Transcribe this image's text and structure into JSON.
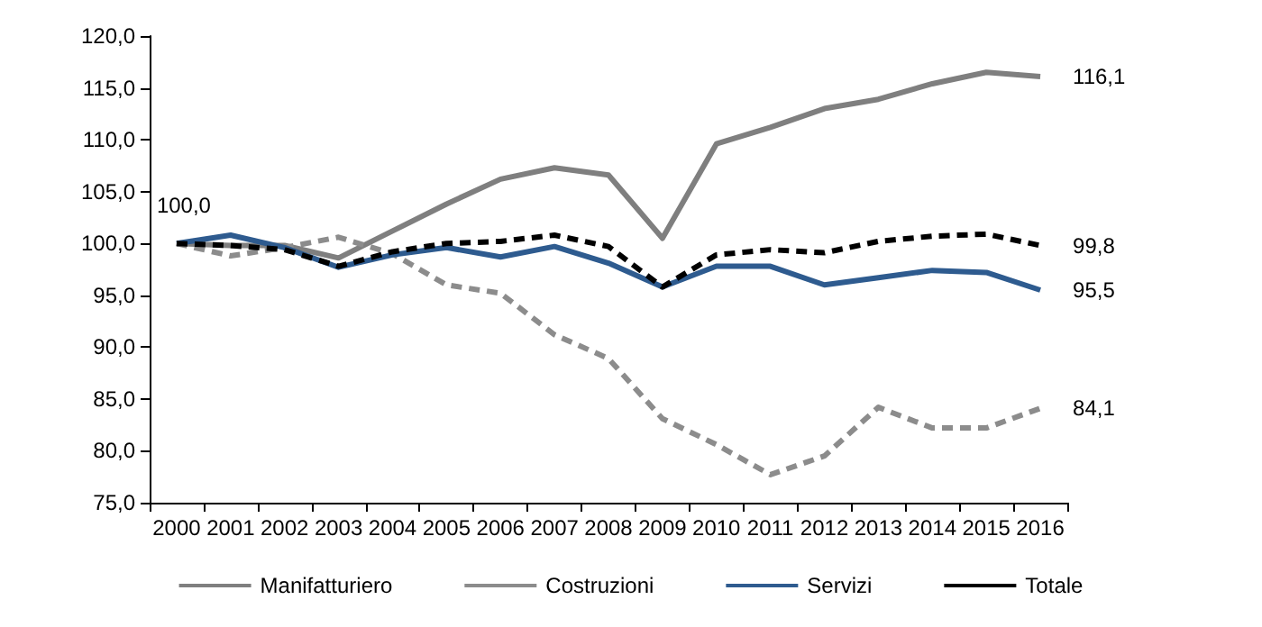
{
  "chart_data": {
    "type": "line",
    "categories": [
      "2000",
      "2001",
      "2002",
      "2003",
      "2004",
      "2005",
      "2006",
      "2007",
      "2008",
      "2009",
      "2010",
      "2011",
      "2012",
      "2013",
      "2014",
      "2015",
      "2016"
    ],
    "series": [
      {
        "name": "Manifatturiero",
        "color": "#7f7f7f",
        "line_style": "solid",
        "values": [
          100,
          99.8,
          99.8,
          98.6,
          101.2,
          103.8,
          106.2,
          107.3,
          106.6,
          100.5,
          109.6,
          111.2,
          113.0,
          113.9,
          115.4,
          116.5,
          116.1
        ],
        "value_labels": [
          "100,0",
          null,
          null,
          null,
          null,
          null,
          null,
          null,
          null,
          null,
          null,
          null,
          null,
          null,
          null,
          null,
          "116,1"
        ]
      },
      {
        "name": "Costruzioni",
        "color": "#8c8c8c",
        "line_style": "dashed",
        "values": [
          100,
          98.8,
          99.6,
          100.6,
          99.0,
          96.0,
          95.2,
          91.2,
          88.9,
          83.1,
          80.6,
          77.7,
          79.5,
          84.2,
          82.2,
          82.2,
          84.1
        ],
        "value_labels": [
          null,
          null,
          null,
          null,
          null,
          null,
          null,
          null,
          null,
          null,
          null,
          null,
          null,
          null,
          null,
          null,
          "84,1"
        ]
      },
      {
        "name": "Servizi",
        "color": "#2e5b8f",
        "line_style": "solid",
        "values": [
          100,
          100.8,
          99.6,
          97.7,
          98.9,
          99.6,
          98.7,
          99.7,
          98.1,
          95.8,
          97.8,
          97.8,
          96.0,
          96.7,
          97.4,
          97.2,
          95.5
        ],
        "value_labels": [
          null,
          null,
          null,
          null,
          null,
          null,
          null,
          null,
          null,
          null,
          null,
          null,
          null,
          null,
          null,
          null,
          "95,5"
        ]
      },
      {
        "name": "Totale",
        "color": "#000000",
        "line_style": "dashed",
        "values": [
          100,
          99.8,
          99.4,
          97.8,
          99.2,
          100.0,
          100.2,
          100.8,
          99.7,
          95.8,
          98.9,
          99.4,
          99.1,
          100.2,
          100.7,
          100.9,
          99.8
        ],
        "value_labels": [
          null,
          null,
          null,
          null,
          null,
          null,
          null,
          null,
          null,
          null,
          null,
          null,
          null,
          null,
          null,
          null,
          "99,8"
        ]
      }
    ],
    "ylim": [
      75,
      120
    ],
    "yticks": [
      {
        "value": 75,
        "label": "75,0"
      },
      {
        "value": 80,
        "label": "80,0"
      },
      {
        "value": 85,
        "label": "85,0"
      },
      {
        "value": 90,
        "label": "90,0"
      },
      {
        "value": 95,
        "label": "95,0"
      },
      {
        "value": 100,
        "label": "100,0"
      },
      {
        "value": 105,
        "label": "105,0"
      },
      {
        "value": 110,
        "label": "110,0"
      },
      {
        "value": 115,
        "label": "115,0"
      },
      {
        "value": 120,
        "label": "120,0"
      }
    ],
    "grid": false,
    "legend": "bottom",
    "marker": "none"
  }
}
